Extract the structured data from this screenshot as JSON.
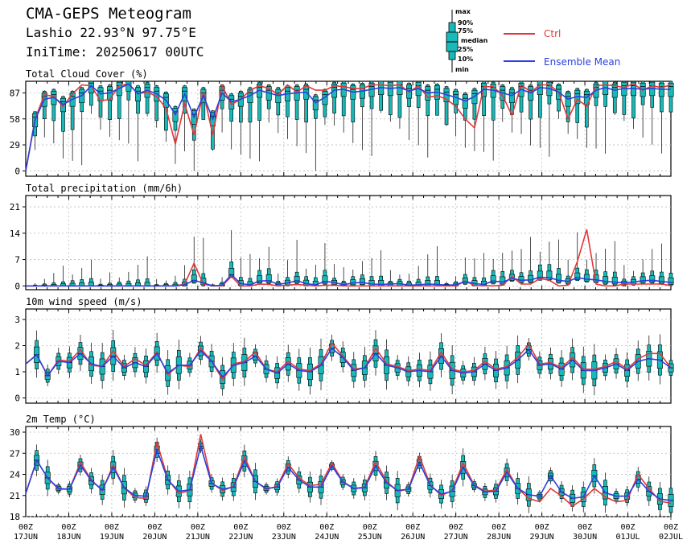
{
  "header": {
    "title": "CMA-GEPS Meteogram",
    "station": "Lashio 22.93°N 97.75°E",
    "init_time": "IniTime: 20250617 00UTC"
  },
  "legend": {
    "box_labels": [
      "max",
      "90%",
      "75%",
      "median",
      "25%",
      "10%",
      "min"
    ],
    "ctrl_label": "Ctrl",
    "mean_label": "Ensemble Mean",
    "ctrl_color": "#e0383a",
    "mean_color": "#2a3fe0",
    "box_color": "#19b9b9"
  },
  "chart_data": [
    {
      "type": "box",
      "title": "Total Cloud Cover (%)",
      "ylim": [
        -6,
        100
      ],
      "yticks": [
        0,
        29,
        58,
        87
      ],
      "x_tick_labels": [
        [
          "00Z",
          "17JUN"
        ],
        [
          "00Z",
          "18JUN"
        ],
        [
          "00Z",
          "19JUN"
        ],
        [
          "00Z",
          "20JUN"
        ],
        [
          "00Z",
          "21JUN"
        ],
        [
          "00Z",
          "22JUN"
        ],
        [
          "00Z",
          "23JUN"
        ],
        [
          "00Z",
          "24JUN"
        ],
        [
          "00Z",
          "25JUN"
        ],
        [
          "00Z",
          "26JUN"
        ],
        [
          "00Z",
          "27JUN"
        ],
        [
          "00Z",
          "28JUN"
        ],
        [
          "00Z",
          "29JUN"
        ],
        [
          "00Z",
          "30JUN"
        ],
        [
          "00Z",
          "01JUL"
        ],
        [
          "00Z",
          "02JUL"
        ]
      ],
      "x_step_hours": 6,
      "grid": true,
      "ctrl": [
        0,
        58,
        85,
        83,
        72,
        86,
        96,
        95,
        78,
        80,
        95,
        97,
        86,
        88,
        83,
        70,
        30,
        75,
        40,
        88,
        40,
        95,
        74,
        80,
        90,
        95,
        92,
        85,
        96,
        88,
        95,
        90,
        90,
        95,
        94,
        92,
        92,
        96,
        96,
        95,
        96,
        88,
        95,
        82,
        84,
        80,
        72,
        58,
        48,
        94,
        94,
        84,
        62,
        96,
        88,
        96,
        96,
        88,
        58,
        80,
        72,
        95,
        96,
        95,
        93,
        97,
        90,
        95,
        93,
        96
      ],
      "mean": [
        0,
        57,
        80,
        82,
        74,
        80,
        84,
        95,
        86,
        87,
        92,
        97,
        86,
        90,
        86,
        79,
        63,
        86,
        60,
        84,
        58,
        87,
        77,
        80,
        84,
        90,
        87,
        84,
        86,
        87,
        88,
        76,
        82,
        90,
        91,
        88,
        89,
        91,
        93,
        92,
        93,
        89,
        92,
        87,
        88,
        85,
        82,
        78,
        83,
        91,
        90,
        87,
        84,
        91,
        87,
        93,
        92,
        88,
        80,
        83,
        82,
        90,
        93,
        90,
        92,
        92,
        91,
        92,
        91,
        91
      ]
    },
    {
      "type": "box",
      "title": "Total precipitation (mm/6h)",
      "ylim": [
        -1,
        24
      ],
      "yticks": [
        0,
        7,
        14,
        21
      ],
      "grid": true,
      "ctrl": [
        0,
        0,
        0,
        0,
        0,
        0,
        0,
        0,
        0,
        0,
        0,
        0,
        0,
        0,
        0,
        0,
        0,
        0.5,
        6,
        0.5,
        0,
        0,
        2.5,
        0,
        0,
        0.5,
        0.4,
        0,
        0.2,
        0.4,
        0.2,
        0,
        0.2,
        0.2,
        0,
        0,
        0,
        0,
        0,
        0,
        0,
        0,
        0,
        0,
        0,
        0,
        0,
        1.3,
        0.1,
        0.1,
        0,
        0.2,
        2.5,
        0.5,
        0.5,
        2,
        1.5,
        0,
        0.2,
        6.5,
        15,
        0.5,
        0,
        0,
        0.5,
        0.5,
        0.5,
        0.5,
        0.5,
        0.1
      ],
      "mean": [
        0,
        0,
        0,
        0,
        0,
        0,
        0,
        0,
        0,
        0,
        0,
        0,
        0,
        0,
        0,
        0,
        0,
        0.3,
        1.5,
        0.8,
        0,
        0.2,
        3,
        0.6,
        0.3,
        1.3,
        1.4,
        0.4,
        0.8,
        1.4,
        0.6,
        0.3,
        1.2,
        0.9,
        0.3,
        0.8,
        0.9,
        0.5,
        0.4,
        0.5,
        0.6,
        0.2,
        0.3,
        0.5,
        0.4,
        0.2,
        0.3,
        1.2,
        0.6,
        0.4,
        1.3,
        1,
        2,
        1.5,
        1.6,
        2.3,
        2.2,
        1.5,
        1.2,
        2.2,
        1.8,
        1.6,
        1.2,
        1,
        0.8,
        1,
        1.4,
        1.5,
        1.2,
        0.9
      ]
    },
    {
      "type": "box",
      "title": "10m wind speed (m/s)",
      "ylim": [
        -0.2,
        3.4
      ],
      "yticks": [
        0,
        1,
        2,
        3
      ],
      "grid": true,
      "ctrl": [
        1.3,
        1.65,
        0.85,
        1.45,
        1.4,
        1.85,
        1.25,
        1.2,
        1.8,
        1.2,
        1.5,
        1.25,
        1.75,
        0.9,
        1.25,
        1.2,
        1.9,
        1.4,
        0.7,
        1.3,
        1.4,
        1.75,
        1.1,
        1.0,
        1.4,
        1.1,
        1.05,
        1.3,
        2.1,
        1.6,
        1.1,
        1.15,
        1.9,
        1.3,
        1.2,
        1.05,
        1.1,
        1.05,
        1.75,
        1.1,
        1.0,
        1.05,
        1.4,
        1.1,
        1.2,
        1.55,
        2.05,
        1.3,
        1.35,
        1.15,
        1.55,
        1.1,
        1.1,
        1.2,
        1.4,
        1.1,
        1.5,
        1.7,
        1.7,
        1.15
      ],
      "mean": [
        1.3,
        1.65,
        0.85,
        1.4,
        1.35,
        1.7,
        1.3,
        1.2,
        1.6,
        1.15,
        1.35,
        1.2,
        1.7,
        0.95,
        1.25,
        1.25,
        1.8,
        1.4,
        0.8,
        1.25,
        1.35,
        1.6,
        1.1,
        0.95,
        1.3,
        1.05,
        1.0,
        1.25,
        1.9,
        1.55,
        1.05,
        1.15,
        1.7,
        1.25,
        1.15,
        1.0,
        1.05,
        1.0,
        1.6,
        1.05,
        0.95,
        1.0,
        1.3,
        1.05,
        1.15,
        1.45,
        1.85,
        1.25,
        1.3,
        1.1,
        1.45,
        1.05,
        1.05,
        1.15,
        1.3,
        1.05,
        1.4,
        1.5,
        1.45,
        1.15
      ]
    },
    {
      "type": "box",
      "title": "2m Temp (°C)",
      "ylim": [
        18,
        30.8
      ],
      "yticks": [
        18,
        21,
        24,
        27,
        30
      ],
      "grid": true,
      "ctrl": [
        21.3,
        26,
        23.5,
        21.9,
        21.9,
        25.7,
        23.2,
        21.7,
        25.3,
        22.1,
        20.7,
        20.6,
        28.6,
        23.3,
        21.3,
        21.7,
        29.7,
        22.8,
        21.7,
        22.3,
        26.5,
        23,
        21.9,
        22.3,
        25.5,
        23.5,
        22.4,
        22.6,
        25.6,
        23,
        22,
        22.2,
        25.8,
        23,
        21.6,
        21.9,
        26.6,
        22.5,
        21,
        21.7,
        25.6,
        22.5,
        21.6,
        21.8,
        24.7,
        22,
        20.6,
        20.1,
        22,
        20.9,
        19.5,
        20.5,
        22,
        20.8,
        20.1,
        20.3,
        24,
        22,
        20.2,
        19.9
      ],
      "mean": [
        21.3,
        26,
        23.5,
        22,
        21.9,
        25.3,
        23.1,
        21.8,
        25,
        22.1,
        21,
        20.9,
        27.5,
        23.2,
        21.6,
        21.8,
        28,
        22.7,
        21.9,
        22.2,
        25.9,
        23,
        22,
        22.2,
        25,
        23.2,
        22.2,
        22.2,
        25.2,
        22.9,
        22,
        22.1,
        25.2,
        22.8,
        21.7,
        21.9,
        25.7,
        22.4,
        21.2,
        21.6,
        25,
        22.4,
        21.5,
        21.6,
        24.3,
        22,
        21.1,
        20.9,
        23.8,
        21.5,
        20.6,
        20.8,
        23.8,
        21.4,
        20.9,
        20.9,
        23.3,
        21.6,
        20.5,
        20.3
      ]
    }
  ]
}
